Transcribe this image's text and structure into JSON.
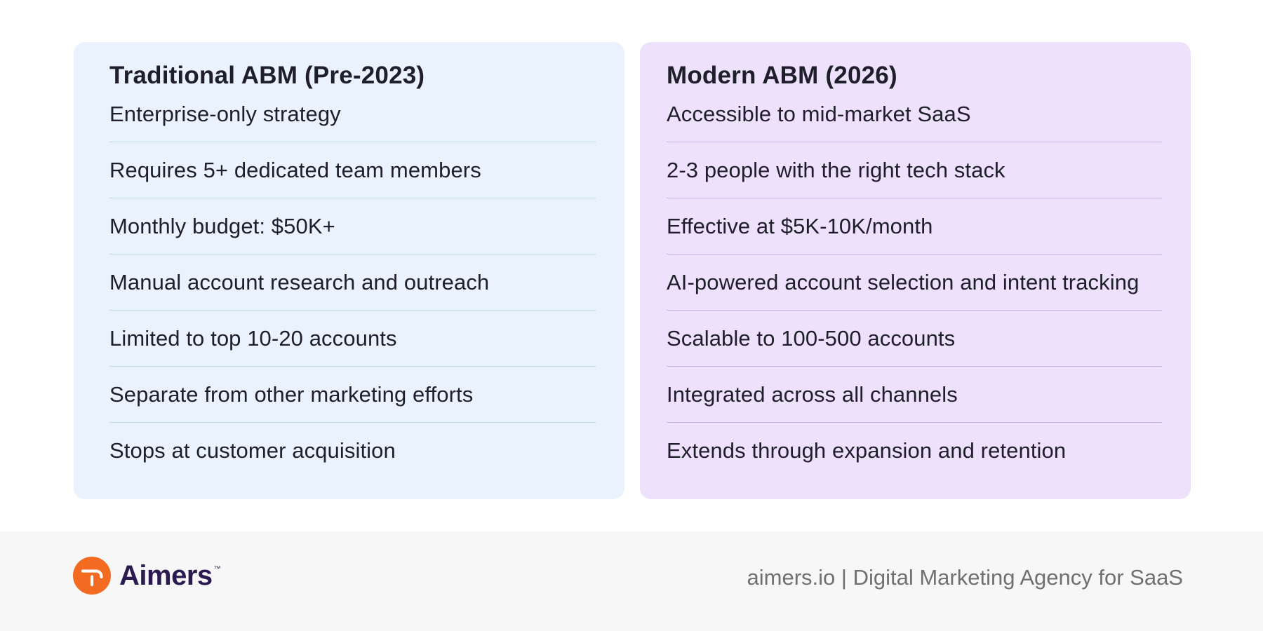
{
  "comparison": {
    "left": {
      "title": "Traditional ABM (Pre-2023)",
      "items": [
        "Enterprise-only strategy",
        "Requires 5+ dedicated team members",
        "Monthly budget: $50K+",
        "Manual account research and outreach",
        "Limited to top 10-20 accounts",
        "Separate from other marketing efforts",
        "Stops at customer acquisition"
      ]
    },
    "right": {
      "title": "Modern ABM (2026)",
      "items": [
        "Accessible to mid-market SaaS",
        "2-3 people with the right tech stack",
        "Effective at $5K-10K/month",
        "AI-powered account selection and intent tracking",
        "Scalable to 100-500 accounts",
        "Integrated across all channels",
        "Extends through expansion and retention"
      ]
    }
  },
  "footer": {
    "brand": "Aimers",
    "trademark": "™",
    "tagline": "aimers.io | Digital Marketing Agency for SaaS"
  },
  "colors": {
    "left_card_bg": "#e9f2fd",
    "right_card_bg": "#ede1fb",
    "brand_orange": "#f26b21",
    "brand_purple": "#2b1a4f"
  },
  "icons": {
    "logo": "aimers-logo-icon"
  }
}
